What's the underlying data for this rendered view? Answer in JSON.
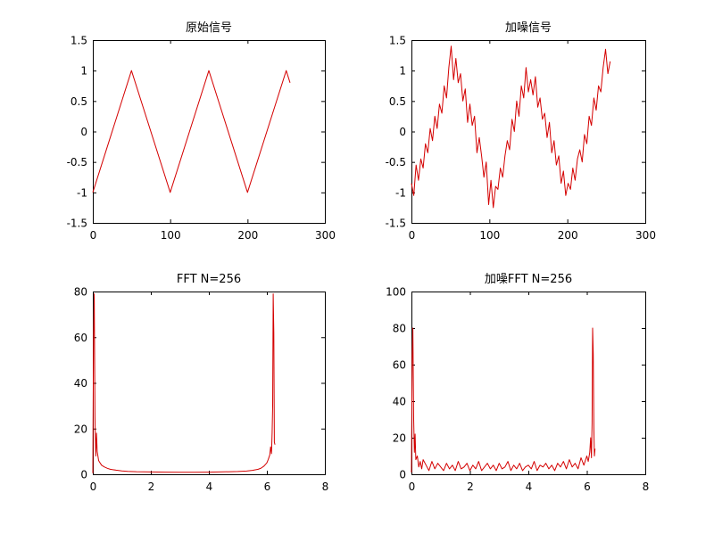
{
  "chart_data": [
    {
      "type": "line",
      "title": "原始信号",
      "xlim": [
        0,
        300
      ],
      "ylim": [
        -1.5,
        1.5
      ],
      "xticks": [
        "0",
        "100",
        "200",
        "300"
      ],
      "yticks": [
        "-1.5",
        "-1",
        "-0.5",
        "0",
        "0.5",
        "1",
        "1.5"
      ],
      "grid": false,
      "color": "#d40000",
      "series": [
        {
          "x": [
            0,
            50,
            100,
            150,
            200,
            250,
            255
          ],
          "y": [
            -1,
            1,
            -1,
            1,
            -1,
            1,
            0.8
          ]
        }
      ]
    },
    {
      "type": "line",
      "title": "加噪信号",
      "xlim": [
        0,
        300
      ],
      "ylim": [
        -1.5,
        1.5
      ],
      "xticks": [
        "0",
        "100",
        "200",
        "300"
      ],
      "yticks": [
        "-1.5",
        "-1",
        "-0.5",
        "0",
        "0.5",
        "1",
        "1.5"
      ],
      "grid": false,
      "color": "#d40000",
      "series": [
        {
          "x": [
            0,
            3,
            6,
            9,
            12,
            15,
            18,
            21,
            24,
            27,
            30,
            33,
            36,
            39,
            42,
            45,
            48,
            51,
            54,
            57,
            60,
            63,
            66,
            69,
            72,
            75,
            78,
            81,
            84,
            87,
            90,
            93,
            96,
            99,
            102,
            105,
            108,
            111,
            114,
            117,
            120,
            123,
            126,
            129,
            132,
            135,
            138,
            141,
            144,
            147,
            150,
            153,
            156,
            159,
            162,
            165,
            168,
            171,
            174,
            177,
            180,
            183,
            186,
            189,
            192,
            195,
            198,
            201,
            204,
            207,
            210,
            213,
            216,
            219,
            222,
            225,
            228,
            231,
            234,
            237,
            240,
            243,
            246,
            249,
            252,
            255
          ],
          "y": [
            -0.85,
            -1.05,
            -0.55,
            -0.8,
            -0.45,
            -0.6,
            -0.2,
            -0.35,
            0.05,
            -0.15,
            0.25,
            0.05,
            0.45,
            0.3,
            0.75,
            0.55,
            1.05,
            1.4,
            0.85,
            1.2,
            0.8,
            0.95,
            0.5,
            0.7,
            0.15,
            0.45,
            0.1,
            0.25,
            -0.35,
            -0.1,
            -0.4,
            -0.75,
            -0.5,
            -1.2,
            -0.8,
            -1.25,
            -0.9,
            -0.95,
            -0.6,
            -0.75,
            -0.4,
            -0.15,
            -0.3,
            0.2,
            0.0,
            0.5,
            0.25,
            0.75,
            0.55,
            1.05,
            0.65,
            0.85,
            0.6,
            0.9,
            0.4,
            0.55,
            0.2,
            0.3,
            -0.1,
            0.15,
            -0.35,
            -0.15,
            -0.55,
            -0.4,
            -0.85,
            -0.65,
            -1.05,
            -0.85,
            -0.95,
            -0.6,
            -0.8,
            -0.45,
            -0.3,
            -0.5,
            -0.05,
            -0.2,
            0.25,
            0.1,
            0.55,
            0.35,
            0.75,
            0.65,
            1.05,
            1.35,
            0.95,
            1.15
          ]
        }
      ]
    },
    {
      "type": "line",
      "title": "FFT N=256",
      "xlim": [
        0,
        8
      ],
      "ylim": [
        0,
        80
      ],
      "xticks": [
        "0",
        "2",
        "4",
        "6",
        "8"
      ],
      "yticks": [
        "0",
        "20",
        "40",
        "60",
        "80"
      ],
      "grid": false,
      "color": "#d40000",
      "series": [
        {
          "x": [
            0,
            0.025,
            0.05,
            0.075,
            0.1,
            0.125,
            0.15,
            0.2,
            0.25,
            0.3,
            0.4,
            0.5,
            0.6,
            0.8,
            1.0,
            1.2,
            1.5,
            2.0,
            2.5,
            3.0,
            3.5,
            4.0,
            4.5,
            5.0,
            5.3,
            5.5,
            5.7,
            5.8,
            5.9,
            6.0,
            6.05,
            6.1,
            6.13,
            6.16,
            6.18,
            6.2,
            6.22,
            6.24,
            6.26,
            6.28
          ],
          "y": [
            0.5,
            62,
            79,
            25,
            8,
            18,
            10,
            6,
            5,
            4,
            3.2,
            2.6,
            2.2,
            1.8,
            1.5,
            1.3,
            1.15,
            1.0,
            0.95,
            0.9,
            0.9,
            0.95,
            1.05,
            1.2,
            1.4,
            1.7,
            2.2,
            2.7,
            3.6,
            5.0,
            6.5,
            8.5,
            12,
            9,
            18,
            30,
            79,
            62,
            14,
            13
          ]
        }
      ]
    },
    {
      "type": "line",
      "title": "加噪FFT N=256",
      "xlim": [
        0,
        8
      ],
      "ylim": [
        0,
        100
      ],
      "xticks": [
        "0",
        "2",
        "4",
        "6",
        "8"
      ],
      "yticks": [
        "0",
        "20",
        "40",
        "60",
        "80",
        "100"
      ],
      "grid": false,
      "color": "#d40000",
      "series": [
        {
          "x": [
            0,
            0.025,
            0.05,
            0.075,
            0.1,
            0.125,
            0.15,
            0.2,
            0.25,
            0.3,
            0.35,
            0.4,
            0.5,
            0.6,
            0.7,
            0.8,
            0.9,
            1.0,
            1.1,
            1.2,
            1.3,
            1.4,
            1.5,
            1.6,
            1.7,
            1.8,
            1.9,
            2.0,
            2.1,
            2.2,
            2.3,
            2.4,
            2.5,
            2.6,
            2.7,
            2.8,
            2.9,
            3.0,
            3.1,
            3.2,
            3.3,
            3.4,
            3.5,
            3.6,
            3.7,
            3.8,
            3.9,
            4.0,
            4.1,
            4.2,
            4.3,
            4.4,
            4.5,
            4.6,
            4.7,
            4.8,
            4.9,
            5.0,
            5.1,
            5.2,
            5.3,
            5.4,
            5.5,
            5.6,
            5.7,
            5.8,
            5.9,
            6.0,
            6.05,
            6.1,
            6.13,
            6.16,
            6.18,
            6.2,
            6.22,
            6.24,
            6.26,
            6.28
          ],
          "y": [
            1,
            65,
            80,
            30,
            12,
            22,
            8,
            10,
            4,
            7,
            3,
            8,
            5,
            2,
            7,
            3,
            6,
            4,
            2,
            6,
            3,
            5,
            2,
            7,
            3,
            4,
            6,
            2,
            5,
            3,
            7,
            2,
            4,
            6,
            3,
            5,
            2,
            6,
            3,
            4,
            7,
            2,
            5,
            3,
            6,
            2,
            4,
            5,
            3,
            7,
            2,
            5,
            4,
            6,
            3,
            5,
            2,
            6,
            4,
            7,
            3,
            8,
            4,
            6,
            3,
            9,
            5,
            10,
            7,
            12,
            20,
            9,
            28,
            80,
            66,
            25,
            10,
            14
          ]
        }
      ]
    }
  ]
}
